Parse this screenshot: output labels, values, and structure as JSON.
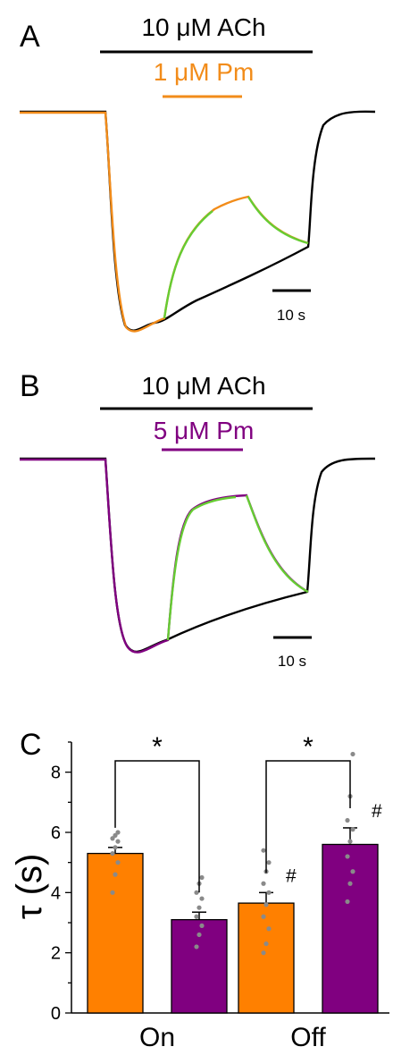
{
  "panels": {
    "A": {
      "label": "A",
      "agonist_label": "10 μM ACh",
      "modulator_label": "1 μM Pm",
      "scale_bar_label": "10 s",
      "modulator_color": "#f28c1a",
      "fit_color": "#66cc33",
      "control_color": "#000000"
    },
    "B": {
      "label": "B",
      "agonist_label": "10 μM ACh",
      "modulator_label": "5 μM Pm",
      "scale_bar_label": "10 s",
      "modulator_color": "#800080",
      "fit_color": "#66cc33",
      "control_color": "#000000"
    },
    "C": {
      "label": "C"
    }
  },
  "chart_data": {
    "type": "bar",
    "categories": [
      "On",
      "Off"
    ],
    "ylabel": "τ (s)",
    "ylim": [
      0,
      9
    ],
    "yticks": [
      0,
      2,
      4,
      6,
      8
    ],
    "grid": false,
    "series": [
      {
        "color": "#ff8000",
        "values": [
          5.3,
          3.65
        ],
        "errors": [
          0.2,
          0.35
        ],
        "points": [
          [
            4.0,
            4.6,
            5.0,
            5.3,
            5.5,
            5.7,
            5.8,
            5.9,
            6.0
          ],
          [
            2.0,
            2.3,
            2.8,
            3.2,
            3.6,
            4.0,
            4.3,
            4.7,
            5.0,
            5.4
          ]
        ]
      },
      {
        "color": "#800080",
        "values": [
          3.1,
          5.6
        ],
        "errors": [
          0.25,
          0.55
        ],
        "points": [
          [
            2.2,
            2.6,
            2.9,
            3.2,
            3.5,
            3.8,
            4.0,
            4.3,
            4.5
          ],
          [
            3.7,
            4.3,
            4.7,
            5.2,
            5.7,
            6.1,
            6.4,
            7.2,
            8.6
          ]
        ]
      }
    ],
    "annotations": {
      "significance": [
        "*",
        "*"
      ],
      "hash": [
        "#",
        "#"
      ]
    }
  }
}
